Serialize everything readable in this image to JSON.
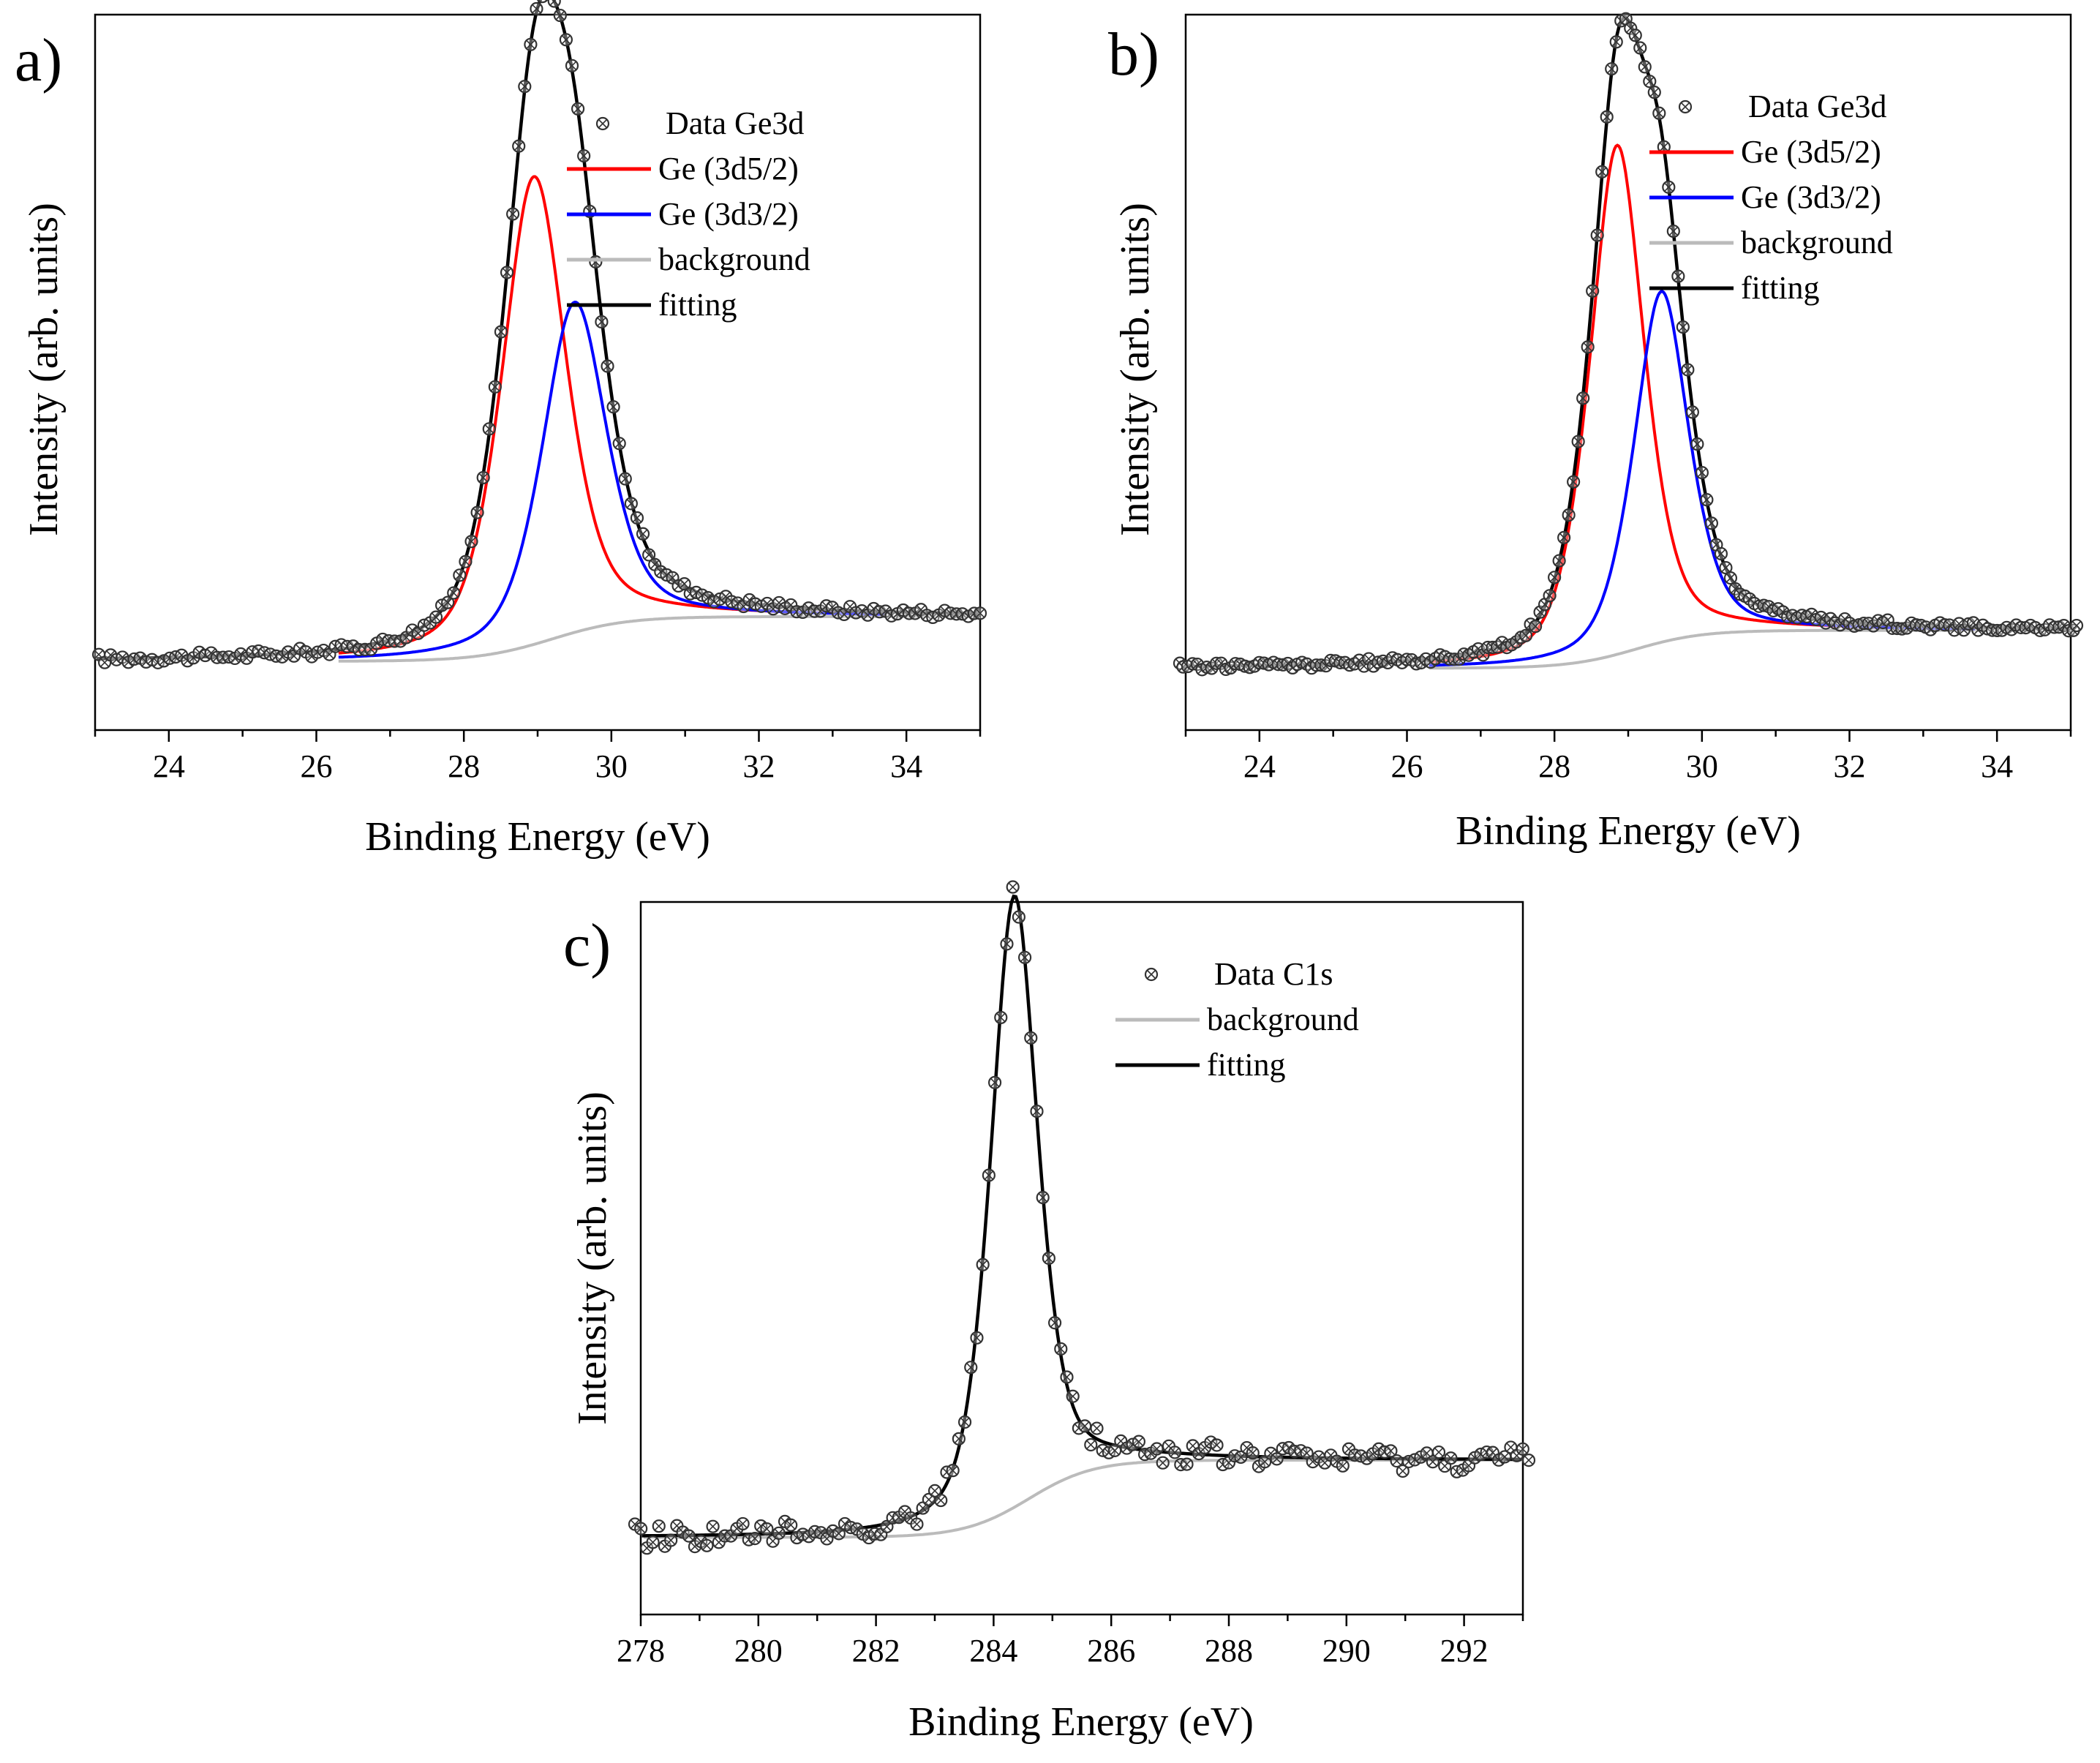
{
  "chart_data": [
    {
      "panel_label": "a)",
      "type": "line",
      "xlabel": "Binding Energy (eV)",
      "ylabel": "Intensity (arb. units)",
      "xlim": [
        23,
        35
      ],
      "ylim": [
        0.6,
        11.0
      ],
      "xticks": [
        "24",
        "26",
        "28",
        "30",
        "32",
        "34"
      ],
      "yticks": "none",
      "legend_position": "top-right",
      "legend": [
        "Data Ge3d",
        "Ge (3d5/2)",
        "Ge (3d3/2)",
        "background",
        "fitting"
      ],
      "colors": {
        "data": "#333333",
        "peak1": "#ff0000",
        "peak2": "#0000ff",
        "background": "#bbbbbb",
        "fitting": "#000000"
      },
      "series": [
        {
          "name": "Ge (3d5/2)",
          "type": "voigt",
          "center": 28.95,
          "height": 6.8,
          "sigma": 0.45,
          "gamma": 0.5
        },
        {
          "name": "Ge (3d3/2)",
          "type": "voigt",
          "center": 29.5,
          "height": 4.8,
          "sigma": 0.45,
          "gamma": 0.5
        },
        {
          "name": "background",
          "type": "shirley",
          "low": 1.6,
          "high": 2.25,
          "center": 29.2,
          "width": 0.5
        },
        {
          "name": "fitting",
          "type": "sum"
        },
        {
          "name": "Data Ge3d",
          "type": "markers",
          "x_start": 23.05,
          "x_end": 35.0,
          "count": 150,
          "noise": 0.06
        }
      ]
    },
    {
      "panel_label": "b)",
      "type": "line",
      "xlabel": "Binding Energy (eV)",
      "ylabel": "Intensity (arb. units)",
      "xlim": [
        23,
        35
      ],
      "ylim": [
        0.6,
        11.0
      ],
      "xticks": [
        "24",
        "26",
        "28",
        "30",
        "32",
        "34"
      ],
      "yticks": "none",
      "legend_position": "top-right",
      "legend": [
        "Data Ge3d",
        "Ge (3d5/2)",
        "Ge (3d3/2)",
        "background",
        "fitting"
      ],
      "colors": {
        "data": "#333333",
        "peak1": "#ff0000",
        "peak2": "#0000ff",
        "background": "#bbbbbb",
        "fitting": "#000000"
      },
      "series": [
        {
          "name": "Ge (3d5/2)",
          "type": "voigt",
          "center": 28.85,
          "height": 7.4,
          "sigma": 0.4,
          "gamma": 0.4
        },
        {
          "name": "Ge (3d3/2)",
          "type": "voigt",
          "center": 29.45,
          "height": 5.1,
          "sigma": 0.4,
          "gamma": 0.4
        },
        {
          "name": "background",
          "type": "shirley",
          "low": 1.5,
          "high": 2.05,
          "center": 29.1,
          "width": 0.45
        },
        {
          "name": "fitting",
          "type": "sum"
        },
        {
          "name": "Data Ge3d",
          "type": "markers",
          "x_start": 22.9,
          "x_end": 35.1,
          "count": 190,
          "noise": 0.05
        }
      ]
    },
    {
      "panel_label": "c)",
      "type": "line",
      "xlabel": "Binding Energy (eV)",
      "ylabel": "Intensity (arb. units)",
      "xlim": [
        278,
        293
      ],
      "ylim": [
        0.0,
        12.0
      ],
      "xticks": [
        "278",
        "280",
        "282",
        "284",
        "286",
        "288",
        "290",
        "292"
      ],
      "yticks": "none",
      "legend_position": "top-right",
      "legend": [
        "Data C1s",
        "background",
        "fitting"
      ],
      "colors": {
        "data": "#333333",
        "background": "#bbbbbb",
        "fitting": "#000000"
      },
      "series": [
        {
          "name": "C1s",
          "type": "voigt",
          "center": 284.35,
          "height": 10.3,
          "sigma": 0.42,
          "gamma": 0.45
        },
        {
          "name": "background",
          "type": "shirley",
          "low": 1.3,
          "high": 2.6,
          "center": 284.6,
          "width": 0.55
        },
        {
          "name": "fitting",
          "type": "sum"
        },
        {
          "name": "Data C1s",
          "type": "markers",
          "x_start": 277.9,
          "x_end": 293.1,
          "count": 150,
          "noise": 0.18
        }
      ]
    }
  ]
}
